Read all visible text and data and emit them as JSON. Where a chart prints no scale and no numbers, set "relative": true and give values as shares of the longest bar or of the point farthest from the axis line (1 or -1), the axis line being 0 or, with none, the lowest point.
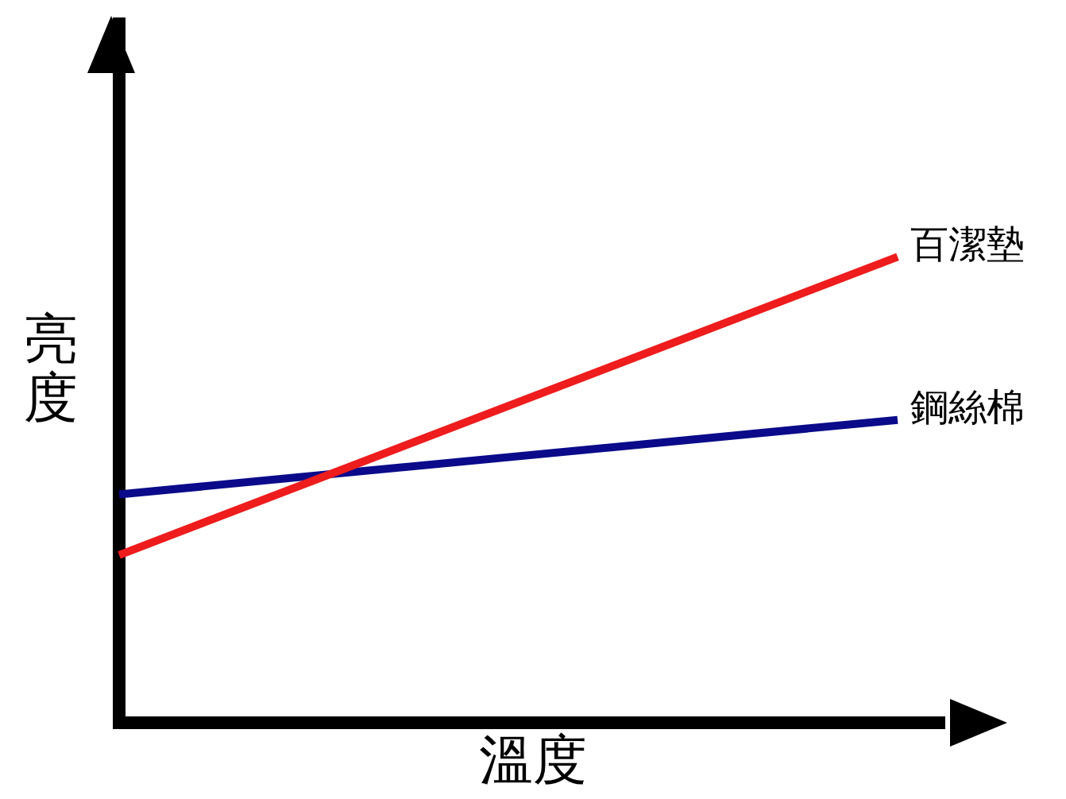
{
  "chart_data": {
    "type": "line",
    "relative": true,
    "xlabel": "溫度",
    "ylabel": "亮度",
    "categories": [
      null,
      null
    ],
    "legend": false,
    "ref_lines": [
      {
        "axis": "y",
        "value": 0,
        "color": "#000000"
      }
    ],
    "series": [
      {
        "name": "百潔墊",
        "color": "#ee1c1c",
        "values": [
          0.36,
          1
        ]
      },
      {
        "name": "鋼絲棉",
        "color": "#0a0a8a",
        "values": [
          0.49,
          0.65
        ]
      }
    ]
  }
}
